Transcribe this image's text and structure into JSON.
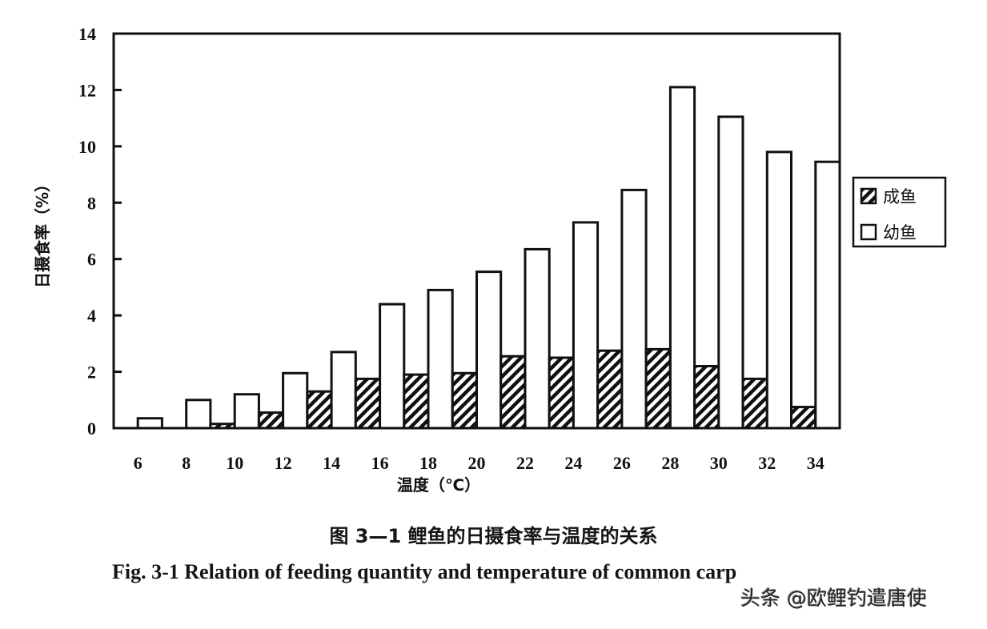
{
  "chart_data": {
    "type": "bar",
    "title": "图 3—1 鲤鱼的日摄食率与温度的关系",
    "subtitle": "Fig. 3-1 Relation of feeding quantity and temperature of common carp",
    "xlabel": "温度（℃）",
    "ylabel": "日摄食率（%）",
    "ylim": [
      0,
      14
    ],
    "yticks": [
      0,
      2,
      4,
      6,
      8,
      10,
      12,
      14
    ],
    "grid": false,
    "legend_position": "right",
    "categories": [
      "6",
      "8",
      "10",
      "12",
      "14",
      "16",
      "18",
      "20",
      "22",
      "24",
      "26",
      "28",
      "30",
      "32",
      "34"
    ],
    "series": [
      {
        "name": "成鱼",
        "pattern": "hatched",
        "values": [
          0,
          0,
          0.15,
          0.55,
          1.3,
          1.75,
          1.9,
          1.95,
          2.55,
          2.5,
          2.75,
          2.8,
          2.2,
          1.75,
          0.75
        ]
      },
      {
        "name": "幼鱼",
        "pattern": "white",
        "values": [
          0.35,
          1.0,
          1.2,
          1.95,
          2.7,
          4.4,
          4.9,
          5.55,
          6.35,
          7.3,
          8.45,
          12.1,
          11.05,
          9.8,
          9.45
        ]
      }
    ]
  },
  "legend": {
    "items": [
      {
        "label": "成鱼",
        "icon": "hatched-square-icon"
      },
      {
        "label": "幼鱼",
        "icon": "empty-square-icon"
      }
    ]
  },
  "captions": {
    "cn": "图 3—1  鲤鱼的日摄食率与温度的关系",
    "en": "Fig. 3-1 Relation of feeding quantity and temperature of common carp"
  },
  "watermark": "头条 @欧鲤钓遣唐使",
  "colors": {
    "ink": "#111111",
    "background": "#ffffff"
  }
}
